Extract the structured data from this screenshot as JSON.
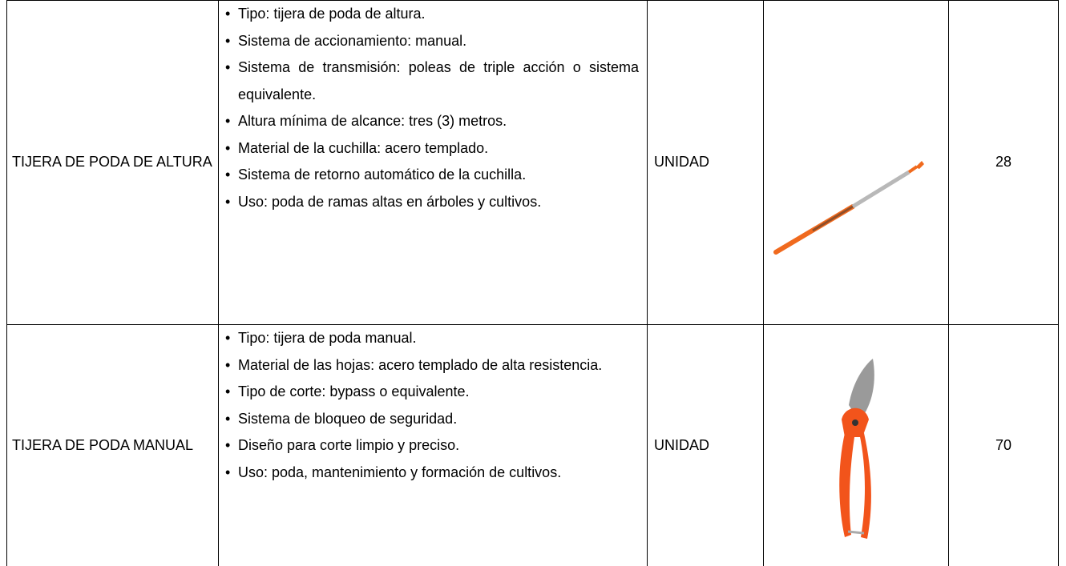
{
  "table": {
    "rows": [
      {
        "name": "TIJERA DE PODA DE ALTURA",
        "specs": [
          "Tipo: tijera de poda de altura.",
          "Sistema de accionamiento: manual.",
          "Sistema de transmisión: poleas de triple acción o sistema equivalente.",
          "Altura mínima de alcance: tres (3) metros.",
          "Material de la cuchilla: acero templado.",
          "Sistema de retorno automático de la cuchilla.",
          "Uso: poda de ramas altas en árboles y cultivos."
        ],
        "unit": "UNIDAD",
        "quantity": 28
      },
      {
        "name": "TIJERA DE PODA MANUAL",
        "specs": [
          "Tipo: tijera de poda manual.",
          "Material de las hojas: acero templado de alta resistencia.",
          "Tipo de corte: bypass o equivalente.",
          "Sistema de bloqueo de seguridad.",
          "Diseño para corte limpio y preciso.",
          "Uso: poda, mantenimiento y formación de cultivos."
        ],
        "unit": "UNIDAD",
        "quantity": 70
      }
    ]
  }
}
